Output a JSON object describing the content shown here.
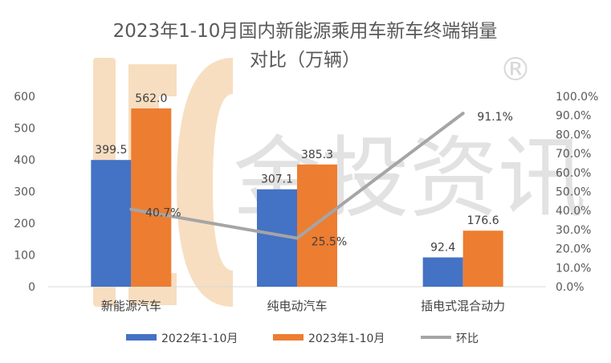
{
  "watermark": {
    "text": "金投资讯",
    "mark": "®",
    "logo_color": "#e8a04a"
  },
  "chart_data": {
    "type": "bar",
    "title_line1": "2023年1-10月国内新能源乘用车新车终端销量",
    "title_line2": "对比（万辆）",
    "categories": [
      "新能源汽车",
      "纯电动汽车",
      "插电式混合动力"
    ],
    "series": [
      {
        "name": "2022年1-10月",
        "type": "bar",
        "axis": "left",
        "color": "#4472c4",
        "values": [
          399.5,
          307.1,
          92.4
        ],
        "labels": [
          "399.5",
          "307.1",
          "92.4"
        ]
      },
      {
        "name": "2023年1-10月",
        "type": "bar",
        "axis": "left",
        "color": "#ed7d31",
        "values": [
          562.0,
          385.3,
          176.6
        ],
        "labels": [
          "562.0",
          "385.3",
          "176.6"
        ]
      },
      {
        "name": "环比",
        "type": "line",
        "axis": "right",
        "color": "#a5a5a5",
        "values": [
          40.7,
          25.5,
          91.1
        ],
        "labels": [
          "40.7%",
          "25.5%",
          "91.1%"
        ]
      }
    ],
    "y_left": {
      "min": 0,
      "max": 600,
      "ticks": [
        "0",
        "100",
        "200",
        "300",
        "400",
        "500",
        "600"
      ]
    },
    "y_right": {
      "min": 0,
      "max": 100,
      "ticks": [
        "0.0%",
        "10.0%",
        "20.0%",
        "30.0%",
        "40.0%",
        "50.0%",
        "60.0%",
        "70.0%",
        "80.0%",
        "90.0%",
        "100.0%"
      ]
    },
    "grid": false,
    "legend_position": "bottom"
  }
}
